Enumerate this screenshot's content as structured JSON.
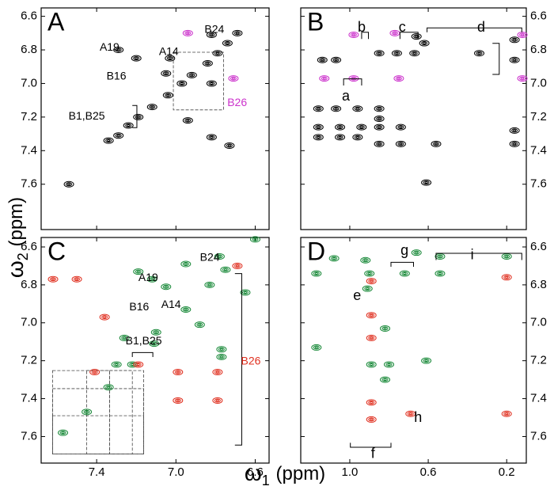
{
  "axis_labels": {
    "x": {
      "symbol": "ω",
      "subscript": "1",
      "unit": "(ppm)"
    },
    "y": {
      "symbol": "ω",
      "subscript": "2",
      "unit": "(ppm)"
    }
  },
  "chart_data": [
    {
      "type": "scatter",
      "title": "A",
      "xlim": [
        7.68,
        6.53
      ],
      "ylim": [
        6.55,
        7.87
      ],
      "xticks": [
        7.4,
        {
          "value": 7,
          "label": "7.0"
        },
        6.6
      ],
      "yticks": [
        6.6,
        6.8,
        {
          "value": 7,
          "label": "7.0"
        },
        7.2,
        7.4,
        7.6
      ],
      "x_tick_labels": false,
      "y_tick_side": "left",
      "series": [
        {
          "color": "#000000",
          "x": [
            7.54,
            7.34,
            7.29,
            7.24,
            7.19,
            7.12,
            7.04,
            6.97,
            6.92,
            6.84,
            6.79,
            6.74,
            6.69,
            7.29,
            7.2,
            7.03,
            7.05,
            6.82,
            6.94,
            6.82,
            6.73,
            6.82
          ],
          "values": [
            7.6,
            7.34,
            7.31,
            7.25,
            7.2,
            7.14,
            7.07,
            7.0,
            6.95,
            6.88,
            6.82,
            6.76,
            6.7,
            6.8,
            6.85,
            6.85,
            6.94,
            7.0,
            7.22,
            7.32,
            7.37,
            6.71
          ]
        },
        {
          "color": "#cc33cc",
          "x": [
            6.94,
            6.71
          ],
          "values": [
            6.7,
            6.97
          ]
        }
      ],
      "annotations": [
        {
          "text": "A19",
          "color": "#000000"
        },
        {
          "text": "A14",
          "color": "#000000"
        },
        {
          "text": "B16",
          "color": "#000000"
        },
        {
          "text": "B24",
          "color": "#000000"
        },
        {
          "text": "B1,B25",
          "color": "#000000"
        },
        {
          "text": "B26",
          "color": "#cc33cc"
        }
      ]
    },
    {
      "type": "scatter",
      "title": "B",
      "xlim": [
        1.25,
        0.1
      ],
      "ylim": [
        6.55,
        7.87
      ],
      "xticks": [
        {
          "value": 1,
          "label": "1.0"
        },
        0.6,
        0.2
      ],
      "yticks": [
        6.6,
        6.8,
        {
          "value": 7,
          "label": "7.0"
        },
        7.2,
        7.4,
        7.6
      ],
      "x_tick_labels": false,
      "y_tick_side": "right",
      "series": [
        {
          "color": "#000000",
          "x": [
            1.14,
            1.07,
            0.85,
            0.76,
            0.67,
            0.66,
            0.62,
            0.34,
            0.16,
            0.16,
            1.16,
            1.07,
            0.96,
            0.85,
            0.85,
            1.16,
            1.05,
            0.94,
            0.85,
            0.74,
            1.16,
            1.05,
            0.96,
            0.85,
            0.74,
            0.56,
            0.16,
            0.16,
            0.61
          ],
          "values": [
            6.86,
            6.86,
            6.82,
            6.82,
            6.82,
            6.72,
            6.76,
            6.82,
            6.74,
            6.86,
            7.15,
            7.15,
            7.15,
            7.15,
            7.21,
            7.26,
            7.26,
            7.26,
            7.26,
            7.26,
            7.32,
            7.32,
            7.32,
            7.36,
            7.36,
            7.36,
            7.28,
            7.36,
            7.59
          ]
        },
        {
          "color": "#cc33cc",
          "x": [
            0.98,
            0.77,
            0.12,
            1.13,
            0.98,
            0.75,
            0.12
          ],
          "values": [
            6.71,
            6.7,
            6.71,
            6.97,
            6.97,
            6.97,
            6.97
          ]
        }
      ],
      "annotations": [
        {
          "text": "a",
          "color": "#000000"
        },
        {
          "text": "b",
          "color": "#000000"
        },
        {
          "text": "c",
          "color": "#000000"
        },
        {
          "text": "d",
          "color": "#000000"
        }
      ]
    },
    {
      "type": "scatter",
      "title": "C",
      "xlim": [
        7.68,
        6.53
      ],
      "ylim": [
        6.55,
        7.74
      ],
      "xticks": [
        7.4,
        {
          "value": 7,
          "label": "7.0"
        },
        6.6
      ],
      "yticks": [
        6.6,
        6.8,
        {
          "value": 7,
          "label": "7.0"
        },
        7.2,
        7.4,
        7.6
      ],
      "x_tick_labels": true,
      "y_tick_side": "left",
      "series": [
        {
          "color": "#1a8a3a",
          "x": [
            7.57,
            7.45,
            7.34,
            7.22,
            7.1,
            6.95,
            6.83,
            6.75,
            6.6,
            7.19,
            7.12,
            7.05,
            6.95,
            6.78,
            7.26,
            7.3,
            7.11,
            6.88,
            6.77,
            6.77,
            6.65
          ],
          "values": [
            7.58,
            7.47,
            7.34,
            7.22,
            7.05,
            6.93,
            6.8,
            6.72,
            6.56,
            6.73,
            6.77,
            6.81,
            6.69,
            6.65,
            7.08,
            7.22,
            7.11,
            7.01,
            7.14,
            7.18,
            6.84
          ]
        },
        {
          "color": "#e03020",
          "x": [
            7.62,
            7.5,
            7.36,
            7.41,
            7.19,
            6.99,
            6.99,
            6.79,
            6.79,
            6.69
          ],
          "values": [
            6.77,
            6.77,
            6.97,
            7.26,
            7.22,
            7.26,
            7.41,
            7.26,
            7.41,
            6.7
          ]
        }
      ],
      "annotations": [
        {
          "text": "A19",
          "color": "#000000"
        },
        {
          "text": "B16",
          "color": "#000000"
        },
        {
          "text": "A14",
          "color": "#000000"
        },
        {
          "text": "B24",
          "color": "#000000"
        },
        {
          "text": "B1,B25",
          "color": "#000000"
        },
        {
          "text": "B26",
          "color": "#e03020"
        }
      ]
    },
    {
      "type": "scatter",
      "title": "D",
      "xlim": [
        1.25,
        0.1
      ],
      "ylim": [
        6.55,
        7.74
      ],
      "xticks": [
        {
          "value": 1,
          "label": "1.0"
        },
        0.6,
        0.2
      ],
      "yticks": [
        6.6,
        6.8,
        {
          "value": 7,
          "label": "7.0"
        },
        7.2,
        7.4,
        7.6
      ],
      "x_tick_labels": true,
      "y_tick_side": "right",
      "series": [
        {
          "color": "#1a8a3a",
          "x": [
            1.08,
            0.92,
            0.66,
            0.54,
            0.2,
            1.17,
            0.9,
            0.72,
            0.54,
            0.91,
            0.82,
            0.89,
            0.8,
            0.61,
            0.82,
            1.17
          ],
          "values": [
            6.66,
            6.67,
            6.63,
            6.65,
            6.65,
            6.74,
            6.74,
            6.74,
            6.74,
            6.82,
            7.03,
            7.22,
            7.22,
            7.2,
            7.3,
            7.13
          ]
        },
        {
          "color": "#e03020",
          "x": [
            0.89,
            0.89,
            0.89,
            0.89,
            0.89,
            0.69,
            0.2,
            0.2
          ],
          "values": [
            6.78,
            6.96,
            7.08,
            7.42,
            7.51,
            7.48,
            7.48,
            6.76
          ]
        }
      ],
      "annotations": [
        {
          "text": "e",
          "color": "#000000"
        },
        {
          "text": "f",
          "color": "#000000"
        },
        {
          "text": "g",
          "color": "#000000"
        },
        {
          "text": "h",
          "color": "#000000"
        },
        {
          "text": "i",
          "color": "#000000"
        }
      ]
    }
  ]
}
